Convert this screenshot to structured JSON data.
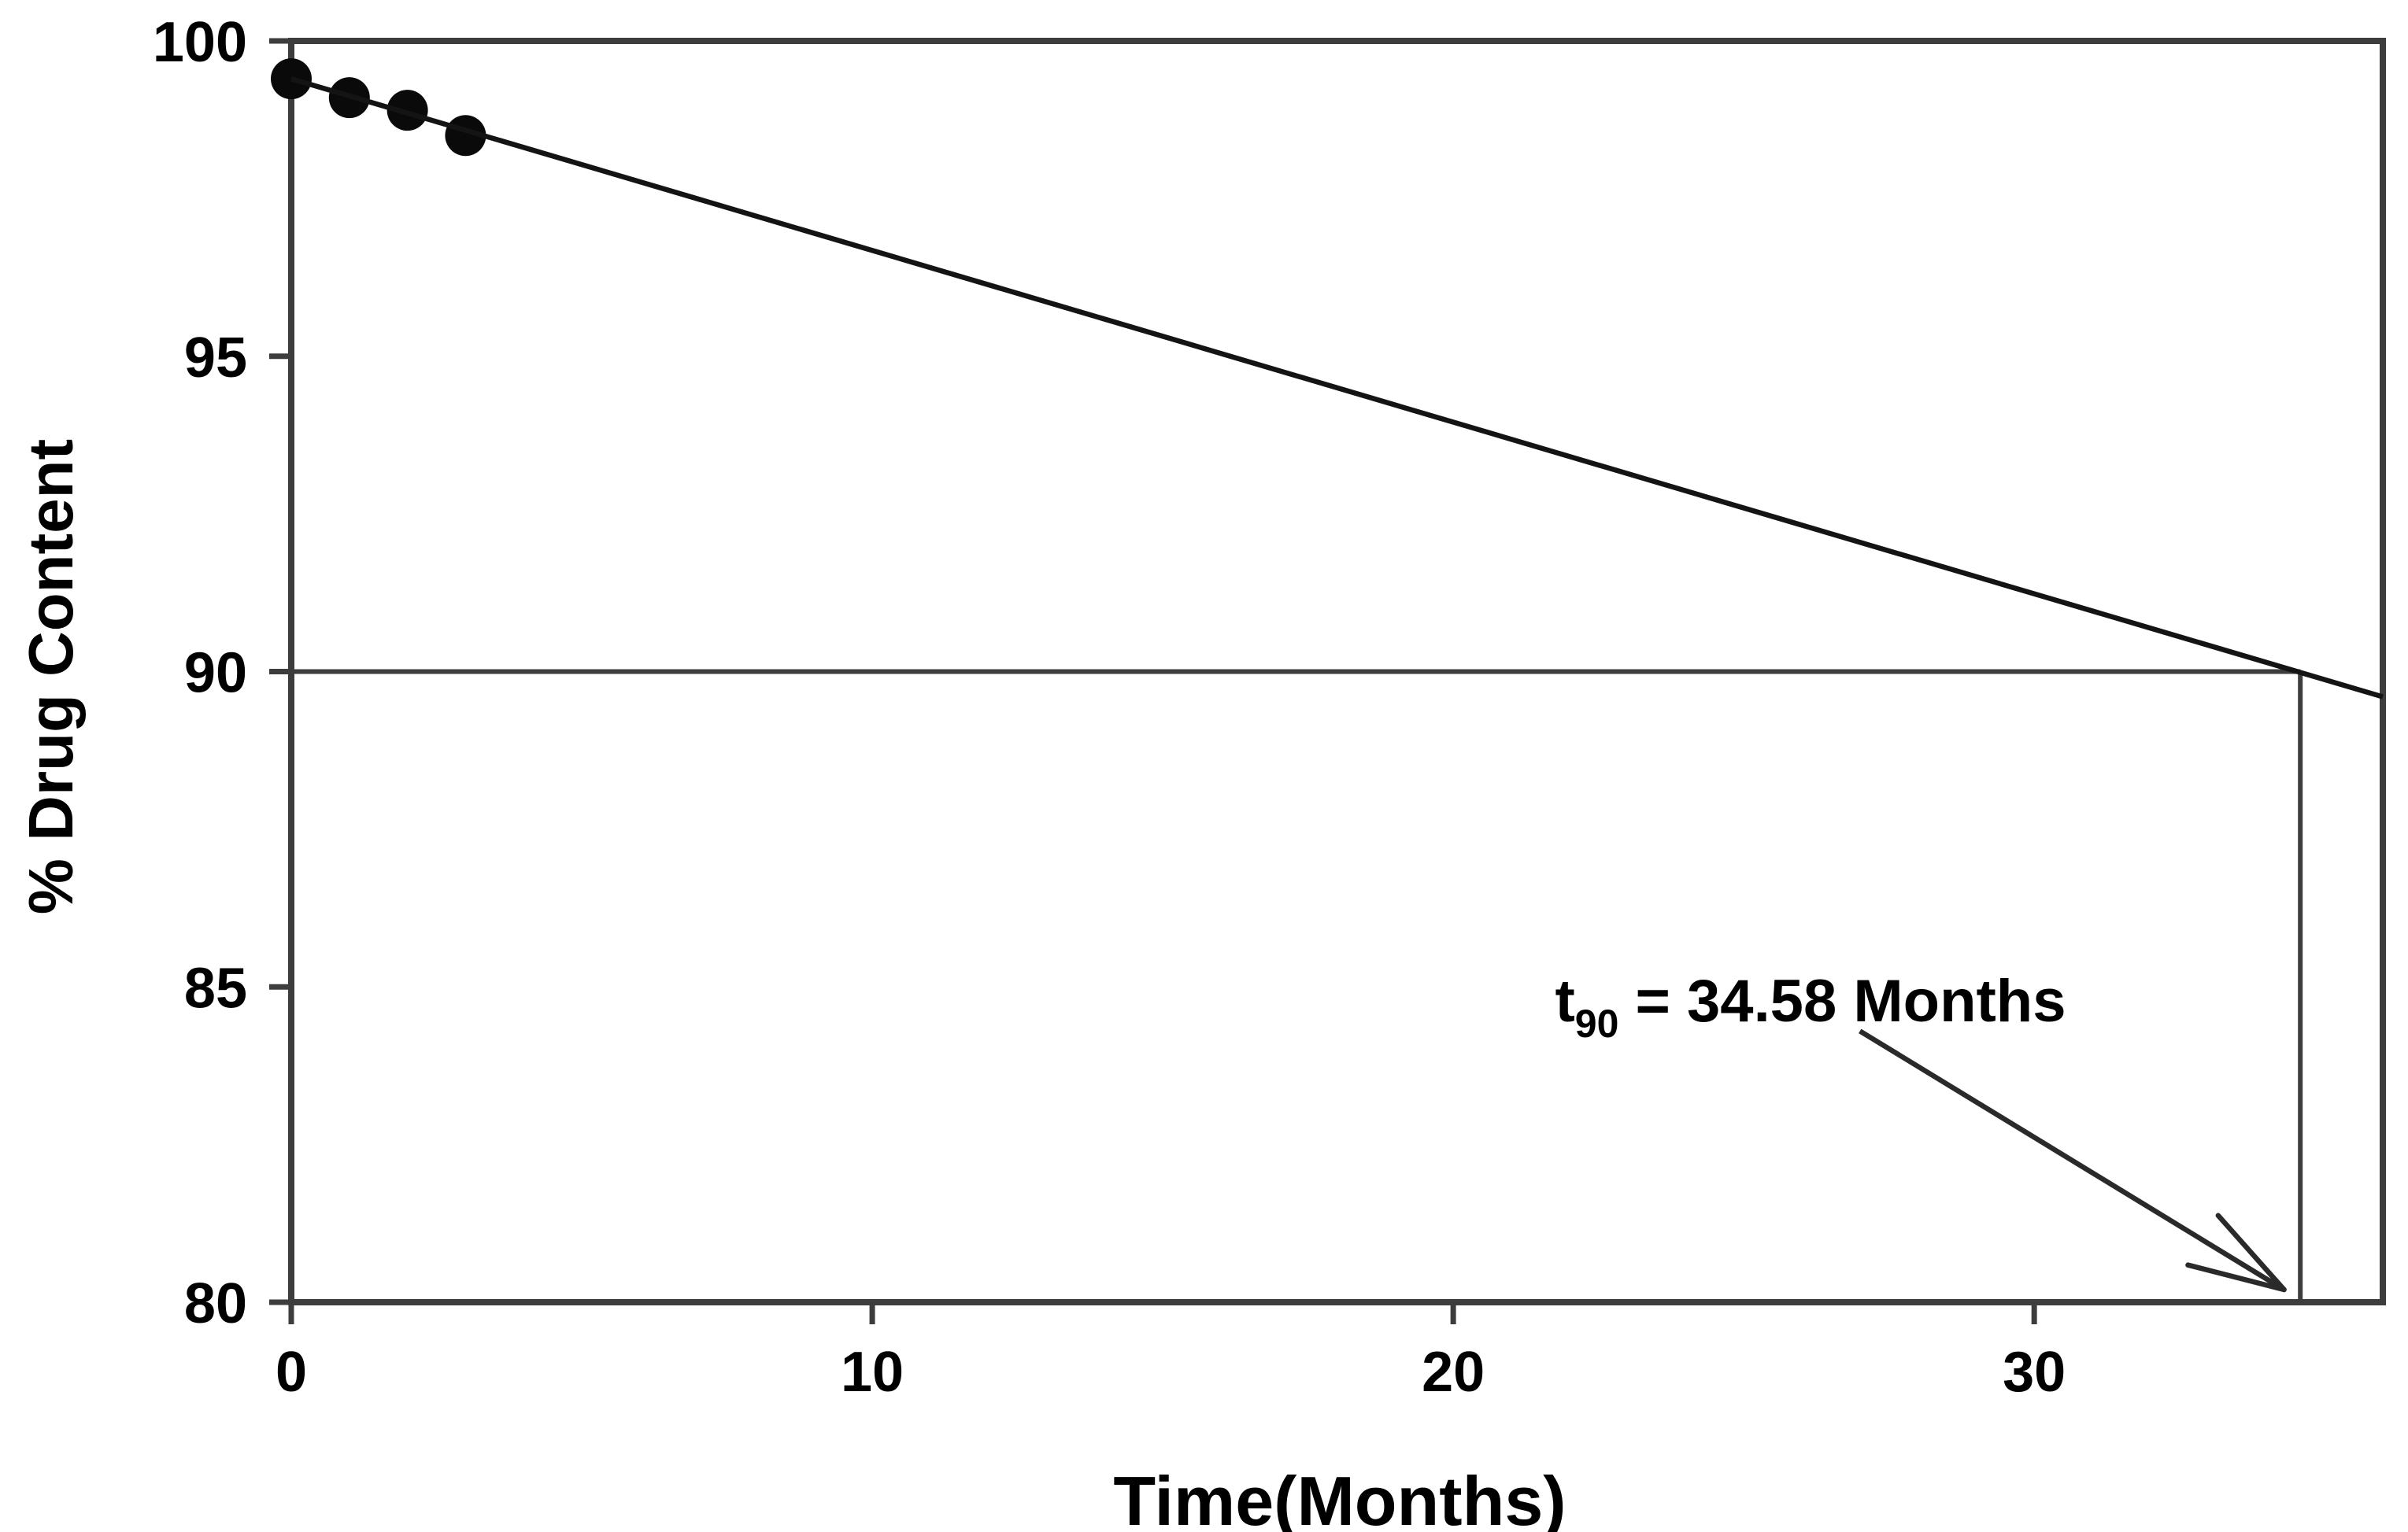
{
  "figure": {
    "background_color": "#ffffff",
    "title": ""
  },
  "colors": {
    "frame_and_ticks": "#3d3d3d",
    "reference_lines": "#3d3d3d",
    "data_line": "#141414",
    "marker_fill": "#0a0a0a",
    "arrow": "#2a2a2a",
    "text": "#000000"
  },
  "chart_data": {
    "type": "line",
    "title": "",
    "xlabel": "Time(Months)",
    "ylabel": "% Drug Content",
    "xlim": [
      0,
      36
    ],
    "ylim": [
      80,
      100
    ],
    "x_ticks": [
      0,
      10,
      20,
      30
    ],
    "y_ticks": [
      100,
      95,
      90,
      85,
      80
    ],
    "grid": false,
    "legend": null,
    "series": [
      {
        "name": "measured-drug-content",
        "type": "scatter",
        "marker": "filled-circle",
        "x": [
          0,
          1,
          2,
          3
        ],
        "y": [
          99.4,
          99.1,
          98.9,
          98.5
        ]
      },
      {
        "name": "regression-extrapolation",
        "type": "line",
        "x": [
          0,
          36
        ],
        "y": [
          99.4,
          89.6
        ]
      }
    ],
    "reference_lines": [
      {
        "name": "spec-limit-90-percent",
        "orientation": "horizontal",
        "y": 90,
        "x_from": 0,
        "x_to": 34.58
      },
      {
        "name": "t90-drop-line",
        "orientation": "vertical",
        "x": 34.58,
        "y_from": 90,
        "y_to": 80
      }
    ],
    "annotation": {
      "prefix": "t",
      "subscript": "90",
      "rest": " = 34.58 Months",
      "value_months": 34.58,
      "anchor": {
        "x": 26.1,
        "y": 84.45
      },
      "arrow": {
        "from": {
          "x": 27.0,
          "y": 84.3
        },
        "to": {
          "x": 34.3,
          "y": 80.2
        }
      }
    }
  }
}
